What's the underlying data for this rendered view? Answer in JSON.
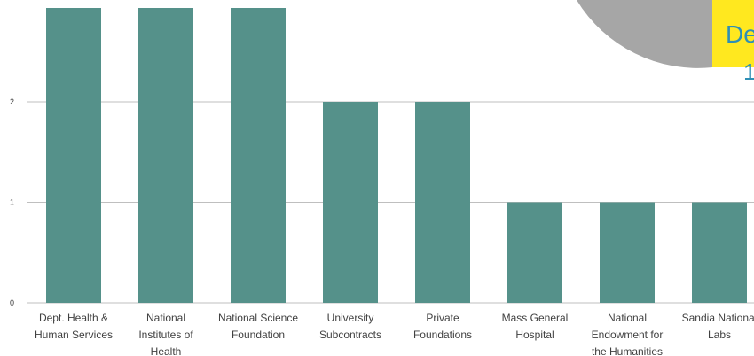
{
  "chart_data": {
    "type": "bar",
    "categories": [
      "Dept. Health & Human Services",
      "National Institutes of Health",
      "National Science Foundation",
      "University Subcontracts",
      "Private Foundations",
      "Mass General Hospital",
      "National Endowment for the Humanities",
      "Sandia National Labs"
    ],
    "category_lines": [
      [
        "Dept. Health &",
        "Human Services"
      ],
      [
        "National",
        "Institutes of",
        "Health"
      ],
      [
        "National Science",
        "Foundation"
      ],
      [
        "University",
        "Subcontracts"
      ],
      [
        "Private",
        "Foundations"
      ],
      [
        "Mass General",
        "Hospital"
      ],
      [
        "National",
        "Endowment for",
        "the Humanities"
      ],
      [
        "Sandia National",
        "Labs"
      ]
    ],
    "values": [
      3,
      3,
      3,
      2,
      2,
      1,
      1,
      1
    ],
    "yticks": [
      "0",
      "1",
      "2"
    ],
    "ylim": [
      0,
      2.9
    ],
    "grid": true,
    "bar_color": "#55918a",
    "gridline_color": "#bfbfbf"
  },
  "inset_pie": {
    "label": "De",
    "sublabel": "1",
    "colors": {
      "slice_gray": "#a6a6a6",
      "slice_yellow": "#ffe81f",
      "text": "#2e8fb5"
    }
  }
}
